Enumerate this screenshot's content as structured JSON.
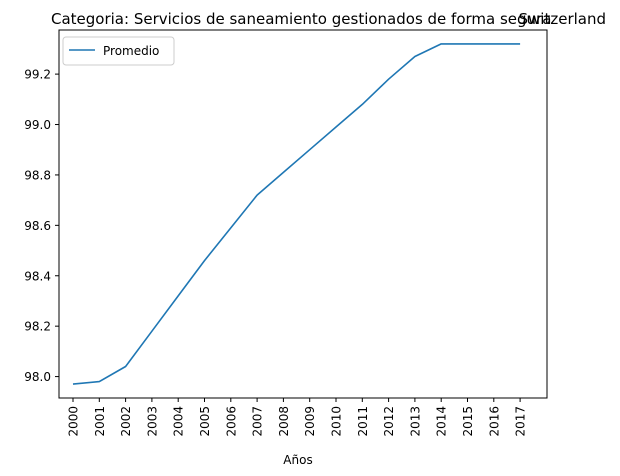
{
  "chart_data": {
    "type": "line",
    "title_left": "Categoria: Servicios de saneamiento gestionados de forma segura",
    "title_right": "Switzerland",
    "xlabel": "Años",
    "ylabel": "",
    "x": [
      "2000",
      "2001",
      "2002",
      "2003",
      "2004",
      "2005",
      "2006",
      "2007",
      "2008",
      "2009",
      "2010",
      "2011",
      "2012",
      "2013",
      "2014",
      "2015",
      "2016",
      "2017"
    ],
    "y_ticks": [
      "98.0",
      "98.2",
      "98.4",
      "98.6",
      "98.8",
      "99.0",
      "99.2"
    ],
    "ylim": [
      97.915,
      99.375
    ],
    "grid": false,
    "legend_position": "top-left",
    "series": [
      {
        "name": "Promedio",
        "color": "#1f77b4",
        "values": [
          97.97,
          97.98,
          98.04,
          98.18,
          98.32,
          98.46,
          98.59,
          98.72,
          98.81,
          98.9,
          98.99,
          99.08,
          99.18,
          99.27,
          99.32,
          99.32,
          99.32,
          99.32
        ]
      }
    ]
  }
}
